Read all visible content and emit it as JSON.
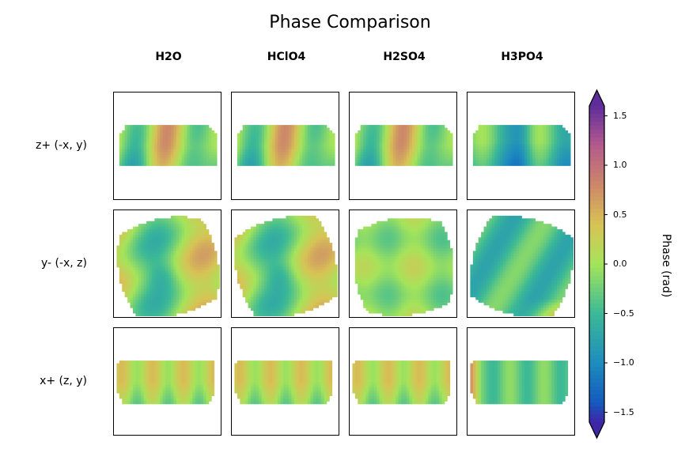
{
  "chart_data": {
    "type": "heatmap",
    "title": "Phase Comparison",
    "columns": [
      "H2O",
      "HClO4",
      "H2SO4",
      "H3PO4"
    ],
    "rows": [
      "z+ (-x, y)",
      "y- (-x, z)",
      "x+ (z, y)"
    ],
    "colorbar": {
      "label": "Phase (rad)",
      "range": [
        -1.6,
        1.6
      ],
      "ticks": [
        1.5,
        1.0,
        0.5,
        0.0,
        -0.5,
        -1.0,
        -1.5
      ],
      "tick_labels": [
        "1.5",
        "1.0",
        "0.5",
        "0.0",
        "−0.5",
        "−1.0",
        "−1.5"
      ],
      "extend": "both",
      "colormap": "turbo-like (blue-green-yellow-pink-purple)"
    }
  }
}
